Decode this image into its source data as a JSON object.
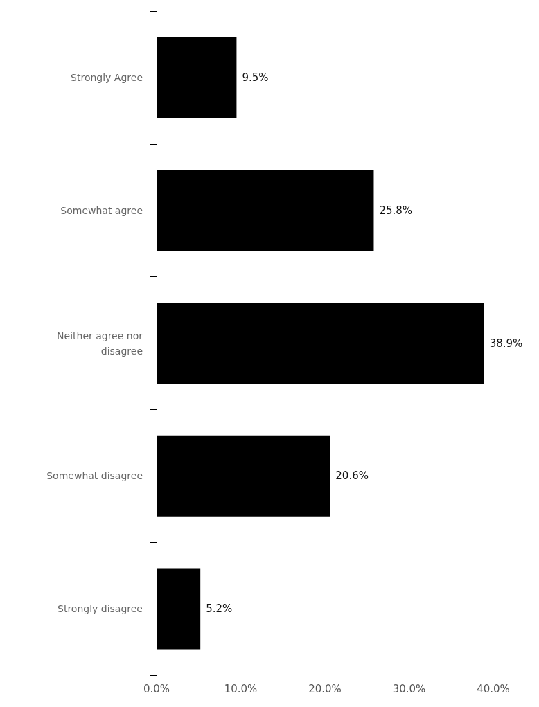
{
  "chart_data": {
    "type": "bar",
    "orientation": "horizontal",
    "categories": [
      "Strongly Agree",
      "Somewhat agree",
      "Neither agree nor\ndisagree",
      "Somewhat disagree",
      "Strongly disagree"
    ],
    "values": [
      9.5,
      25.8,
      38.9,
      20.6,
      5.2
    ],
    "value_labels": [
      "9.5%",
      "25.8%",
      "38.9%",
      "20.6%",
      "5.2%"
    ],
    "color": "#000000",
    "xlim": [
      0,
      40
    ],
    "xticks": [
      {
        "value": 0,
        "label": "0.0%"
      },
      {
        "value": 10,
        "label": "10.0%"
      },
      {
        "value": 20,
        "label": "20.0%"
      },
      {
        "value": 30,
        "label": "30.0%"
      },
      {
        "value": 40,
        "label": "40.0%"
      }
    ]
  }
}
